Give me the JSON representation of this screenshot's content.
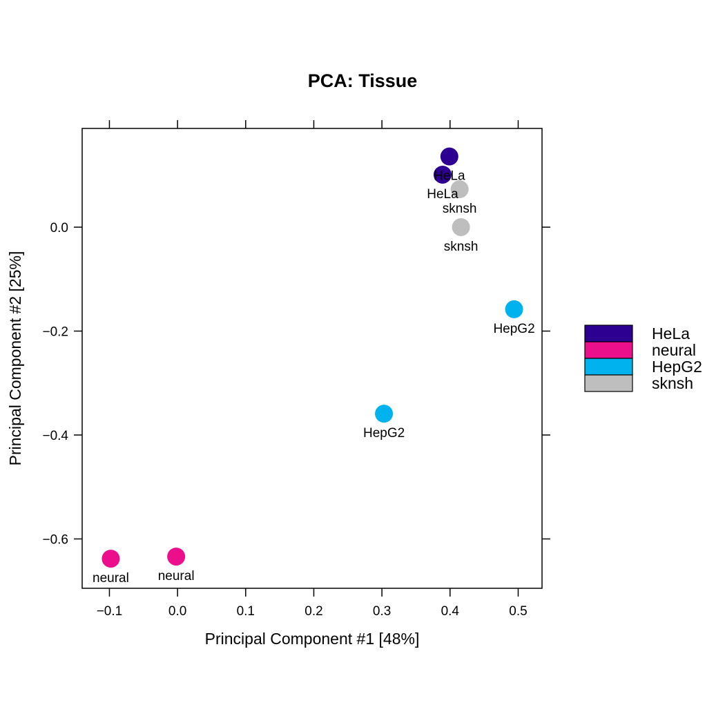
{
  "chart_data": {
    "type": "scatter",
    "title": "PCA: Tissue",
    "xlabel": "Principal Component #1 [48%]",
    "ylabel": "Principal Component #2 [25%]",
    "xlim": [
      -0.14,
      0.535
    ],
    "ylim": [
      -0.695,
      0.19
    ],
    "x_ticks": [
      -0.1,
      0.0,
      0.1,
      0.2,
      0.3,
      0.4,
      0.5
    ],
    "x_tick_labels": [
      "−0.1",
      "0.0",
      "0.1",
      "0.2",
      "0.3",
      "0.4",
      "0.5"
    ],
    "y_ticks": [
      0.0,
      -0.2,
      -0.4,
      -0.6
    ],
    "y_tick_labels": [
      "0.0",
      "−0.2",
      "−0.4",
      "−0.6"
    ],
    "grid": false,
    "legend_position": "right",
    "series": [
      {
        "name": "HeLa",
        "color": "#2E0091",
        "points": [
          {
            "x": 0.399,
            "y": 0.136,
            "label": "HeLa"
          },
          {
            "x": 0.389,
            "y": 0.101,
            "label": "HeLa"
          }
        ]
      },
      {
        "name": "neural",
        "color": "#EC0F8C",
        "points": [
          {
            "x": -0.098,
            "y": -0.638,
            "label": "neural"
          },
          {
            "x": -0.002,
            "y": -0.634,
            "label": "neural"
          }
        ]
      },
      {
        "name": "HepG2",
        "color": "#00B2EE",
        "points": [
          {
            "x": 0.494,
            "y": -0.158,
            "label": "HepG2"
          },
          {
            "x": 0.303,
            "y": -0.359,
            "label": "HepG2"
          }
        ]
      },
      {
        "name": "sknsh",
        "color": "#BEBEBE",
        "points": [
          {
            "x": 0.414,
            "y": 0.073,
            "label": "sknsh"
          },
          {
            "x": 0.416,
            "y": 0.0,
            "label": "sknsh"
          }
        ]
      }
    ]
  }
}
